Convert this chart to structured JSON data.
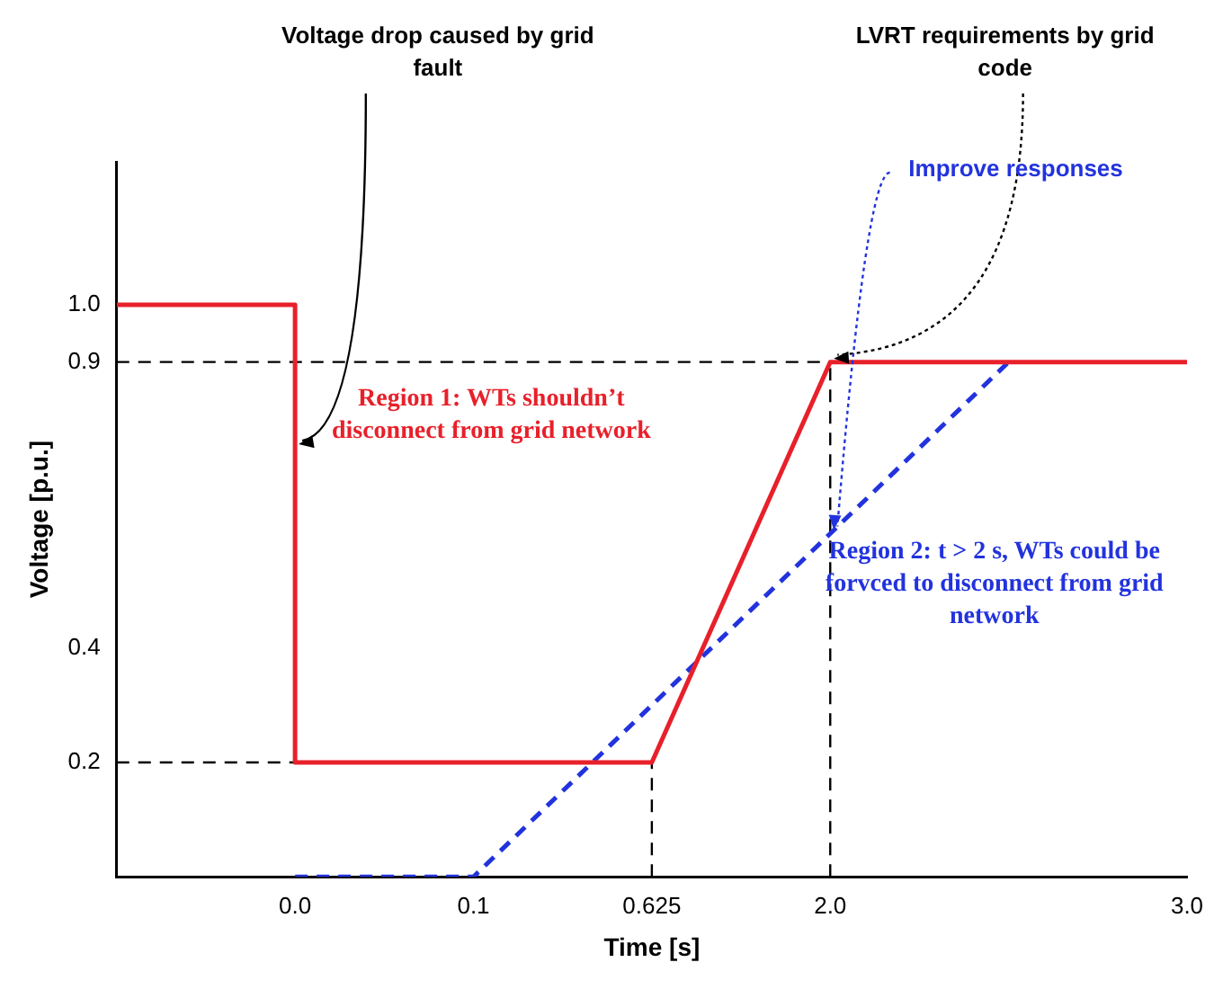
{
  "chart_data": {
    "type": "line",
    "xlabel": "Time [s]",
    "ylabel": "Voltage [p.u.]",
    "categories": [
      null,
      "0.0",
      "0.1",
      "0.625",
      "2.0",
      null,
      "3.0"
    ],
    "series": [
      {
        "color": "#e8202a",
        "line_style": "solid",
        "x": [
          null,
          "0.0",
          "0.0",
          "0.625",
          "2.0",
          "3.0"
        ],
        "values": [
          1.0,
          1.0,
          0.2,
          0.2,
          0.9,
          0.9
        ]
      },
      {
        "color": "#2233dd",
        "line_style": "dashed",
        "values": [
          null,
          0,
          0,
          0.3,
          0.6,
          0.9,
          null
        ]
      }
    ],
    "ylim": [
      0,
      1.25
    ],
    "yticks": [
      {
        "value": 0.2,
        "label": "0.2"
      },
      {
        "value": 0.4,
        "label": "0.4"
      },
      {
        "value": 0.9,
        "label": "0.9"
      },
      {
        "value": 1.0,
        "label": "1.0"
      }
    ],
    "ref_lines": [
      {
        "axis": "y",
        "value": 0.9,
        "color": "#000000",
        "line_style": "dashed"
      },
      {
        "axis": "y",
        "value": 0.2,
        "color": "#000000",
        "line_style": "dashed"
      },
      {
        "axis": "x",
        "value": "0.625",
        "color": "#000000",
        "line_style": "dashed"
      },
      {
        "axis": "x",
        "value": "2.0",
        "color": "#000000",
        "line_style": "dashed"
      }
    ],
    "annotations": [
      {
        "text": "Voltage drop caused by grid fault",
        "x": "0.0",
        "y": 0.75
      },
      {
        "text": "LVRT requirements by grid code",
        "x": "2.0",
        "y": 0.9
      },
      {
        "text": "Improve responses",
        "x": "2.0",
        "y": 0.6
      },
      "Region 1: WTs shouldn’t disconnect from grid network",
      "Region 2: t > 2 s, WTs could be forvced to disconnect from grid network"
    ],
    "grid": false,
    "legend": false,
    "marker": "none"
  }
}
